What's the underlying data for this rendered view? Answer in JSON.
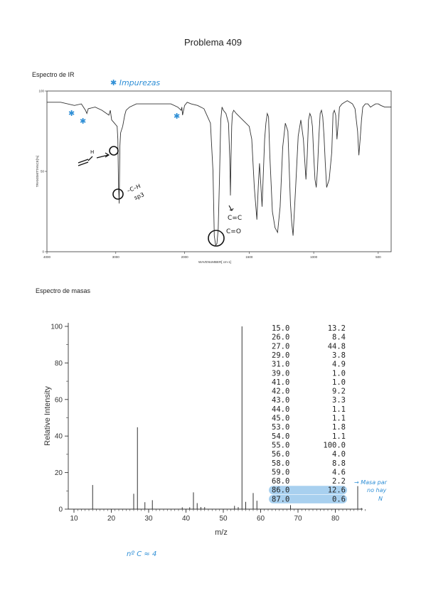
{
  "page": {
    "title": "Problema 409",
    "ir_section": "Espectro de IR",
    "ms_section": "Espectro de masas"
  },
  "annotations": {
    "impurezas": "✱ Impurezas",
    "c_h_sp3_1": "–C–H",
    "c_h_sp3_2": "sp3",
    "vinyl_h": "H",
    "c_eq_c": "C=C",
    "c_eq_o": "C=O",
    "masa_1": "→ Masa par",
    "masa_2": "no hay",
    "masa_3": "N",
    "carbons": "nº C ≈ 4",
    "ink_color": "#2f8fd6"
  },
  "chart_data": [
    {
      "type": "line",
      "name": "IR spectrum",
      "ylabel": "TRANSMITTANCE[%]",
      "xlabel": "WAVENUMBER[ cm-1]",
      "xlim": [
        4000,
        400
      ],
      "ylim": [
        0,
        100
      ],
      "xticks": [
        "4000",
        "3000",
        "2000",
        "1500",
        "1000",
        "500"
      ],
      "yticks": [
        "0",
        "50",
        "100"
      ],
      "x": [
        4000,
        3800,
        3600,
        3500,
        3440,
        3420,
        3400,
        3300,
        3200,
        3100,
        3080,
        3060,
        3020,
        3000,
        2980,
        2970,
        2960,
        2950,
        2940,
        2930,
        2900,
        2870,
        2850,
        2800,
        2700,
        2500,
        2200,
        2100,
        2050,
        2040,
        2030,
        2010,
        2000,
        1980,
        1950,
        1900,
        1850,
        1800,
        1780,
        1770,
        1760,
        1750,
        1740,
        1730,
        1720,
        1710,
        1700,
        1680,
        1660,
        1650,
        1645,
        1640,
        1635,
        1630,
        1620,
        1600,
        1550,
        1500,
        1480,
        1460,
        1440,
        1430,
        1420,
        1410,
        1400,
        1380,
        1370,
        1360,
        1350,
        1340,
        1320,
        1300,
        1280,
        1260,
        1240,
        1220,
        1200,
        1180,
        1170,
        1160,
        1150,
        1140,
        1120,
        1100,
        1080,
        1060,
        1050,
        1040,
        1030,
        1020,
        1010,
        1000,
        990,
        980,
        970,
        960,
        950,
        940,
        930,
        920,
        910,
        900,
        880,
        860,
        850,
        840,
        830,
        820,
        800,
        780,
        760,
        740,
        720,
        700,
        680,
        660,
        650,
        640,
        630,
        620,
        600,
        580,
        560,
        540,
        520,
        500,
        480,
        450,
        420,
        400
      ],
      "y": [
        93,
        93,
        91,
        92,
        88,
        86,
        89,
        90,
        88,
        85,
        88,
        82,
        80,
        79,
        78,
        70,
        40,
        30,
        66,
        74,
        78,
        85,
        88,
        90,
        92,
        92,
        92,
        90,
        88,
        90,
        85,
        89,
        91,
        93,
        92,
        91,
        89,
        80,
        50,
        10,
        4,
        5,
        14,
        45,
        82,
        90,
        88,
        86,
        80,
        58,
        35,
        60,
        78,
        86,
        88,
        86,
        82,
        78,
        70,
        40,
        20,
        40,
        55,
        42,
        28,
        70,
        80,
        86,
        84,
        60,
        25,
        15,
        12,
        28,
        65,
        80,
        75,
        30,
        18,
        10,
        25,
        40,
        72,
        82,
        70,
        45,
        60,
        82,
        86,
        84,
        78,
        60,
        45,
        40,
        52,
        72,
        86,
        88,
        84,
        72,
        55,
        40,
        45,
        62,
        86,
        88,
        85,
        70,
        90,
        92,
        93,
        94,
        93,
        92,
        89,
        75,
        60,
        70,
        82,
        90,
        92,
        92,
        90,
        91,
        92,
        92,
        91,
        90,
        90,
        90
      ],
      "annotations": [
        "✱ Impurezas",
        "–C–H sp3",
        "H",
        "C=C",
        "C=O"
      ]
    },
    {
      "type": "bar",
      "name": "Mass spectrum",
      "xlabel": "m/z",
      "ylabel": "Relative Intensity",
      "xlim": [
        10,
        87
      ],
      "ylim": [
        0,
        100
      ],
      "xticks": [
        "10",
        "20",
        "30",
        "40",
        "50",
        "60",
        "70",
        "80"
      ],
      "yticks": [
        "0",
        "20",
        "40",
        "60",
        "80",
        "100"
      ],
      "peaks": [
        [
          15.0,
          13.2
        ],
        [
          26.0,
          8.4
        ],
        [
          27.0,
          44.8
        ],
        [
          29.0,
          3.8
        ],
        [
          31.0,
          4.9
        ],
        [
          39.0,
          1.0
        ],
        [
          41.0,
          1.0
        ],
        [
          42.0,
          9.2
        ],
        [
          43.0,
          3.3
        ],
        [
          44.0,
          1.1
        ],
        [
          45.0,
          1.1
        ],
        [
          53.0,
          1.8
        ],
        [
          54.0,
          1.1
        ],
        [
          55.0,
          100.0
        ],
        [
          56.0,
          4.0
        ],
        [
          58.0,
          8.8
        ],
        [
          59.0,
          4.6
        ],
        [
          68.0,
          2.2
        ],
        [
          86.0,
          12.6
        ],
        [
          87.0,
          0.6
        ]
      ],
      "table": [
        [
          "15.0",
          "13.2"
        ],
        [
          "26.0",
          "8.4"
        ],
        [
          "27.0",
          "44.8"
        ],
        [
          "29.0",
          "3.8"
        ],
        [
          "31.0",
          "4.9"
        ],
        [
          "39.0",
          "1.0"
        ],
        [
          "41.0",
          "1.0"
        ],
        [
          "42.0",
          "9.2"
        ],
        [
          "43.0",
          "3.3"
        ],
        [
          "44.0",
          "1.1"
        ],
        [
          "45.0",
          "1.1"
        ],
        [
          "53.0",
          "1.8"
        ],
        [
          "54.0",
          "1.1"
        ],
        [
          "55.0",
          "100.0"
        ],
        [
          "56.0",
          "4.0"
        ],
        [
          "58.0",
          "8.8"
        ],
        [
          "59.0",
          "4.6"
        ],
        [
          "68.0",
          "2.2"
        ],
        [
          "86.0",
          "12.6"
        ],
        [
          "87.0",
          "0.6"
        ]
      ],
      "highlighted_rows": [
        "86.0",
        "87.0"
      ],
      "highlight_color": "#a8d0ef"
    }
  ]
}
